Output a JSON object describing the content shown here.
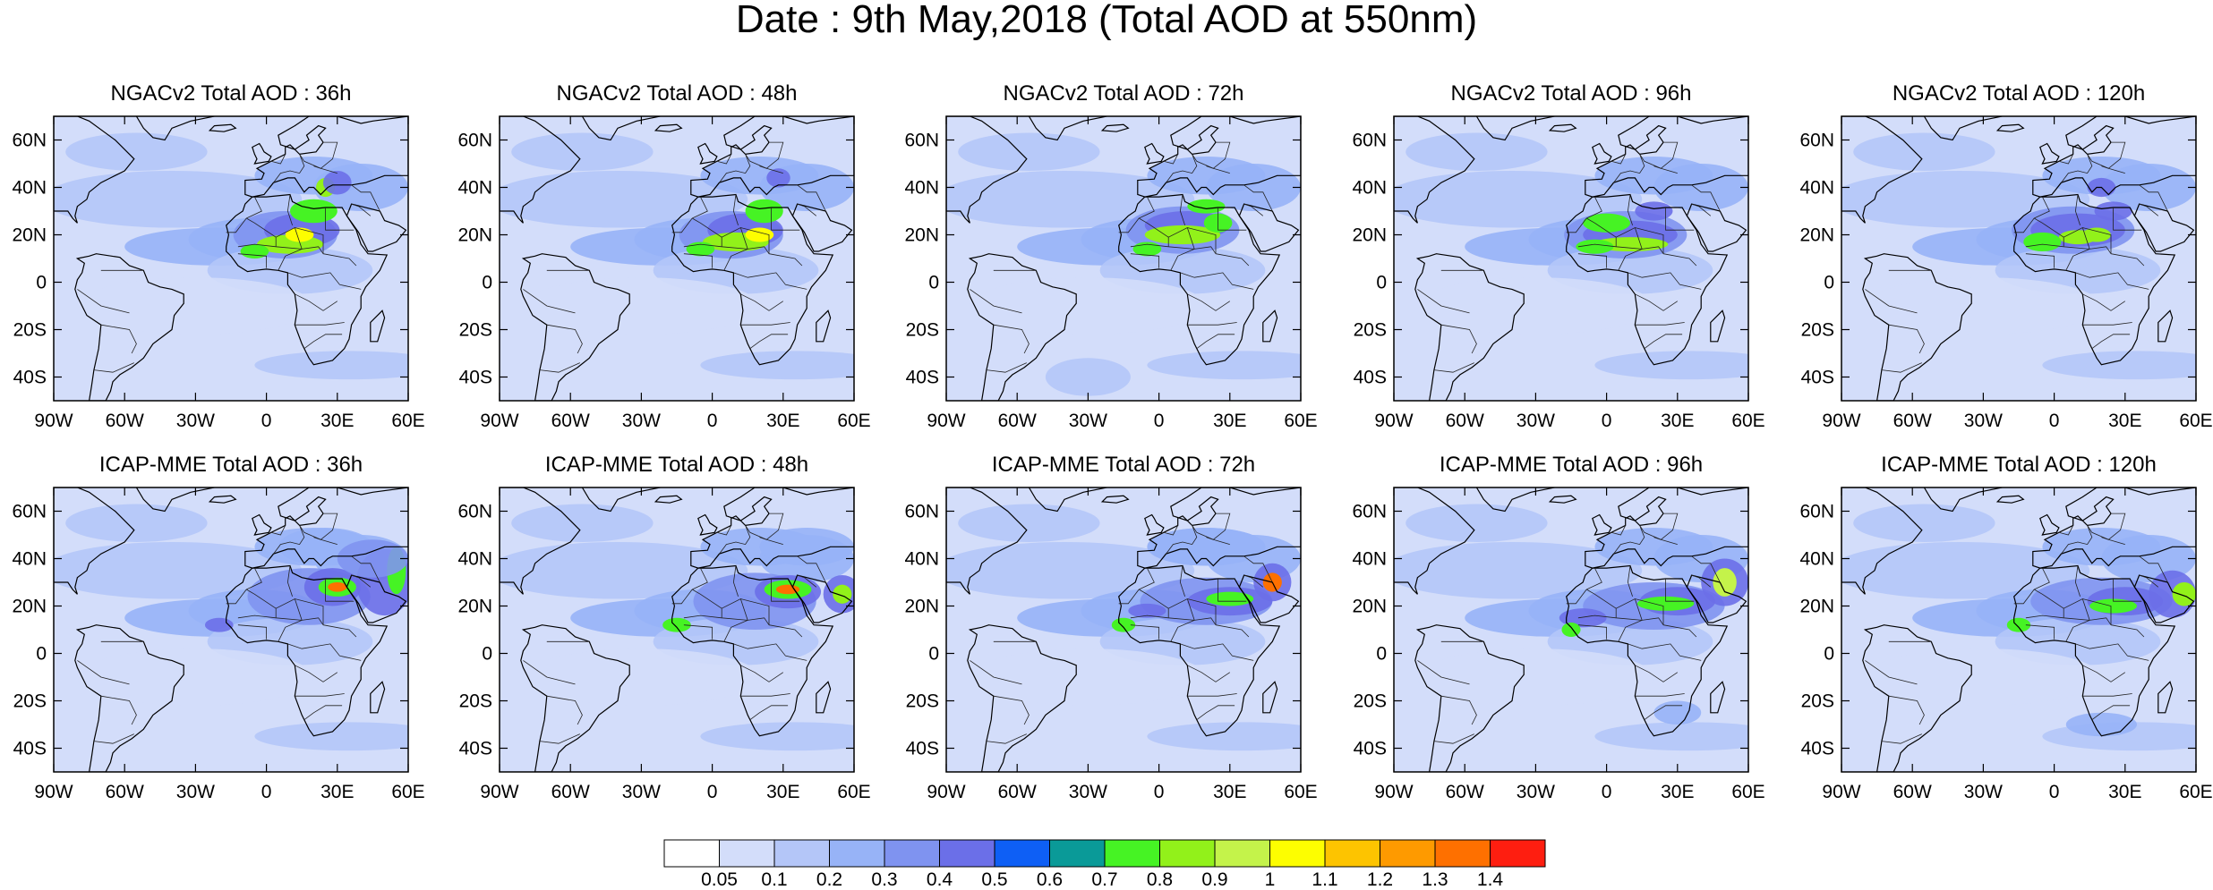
{
  "title": "Date : 9th May,2018 (Total AOD at 550nm)",
  "rows": [
    {
      "model": "NGACv2",
      "panels": [
        {
          "title": "NGACv2 Total AOD : 36h",
          "lead": "36h"
        },
        {
          "title": "NGACv2 Total AOD : 48h",
          "lead": "48h"
        },
        {
          "title": "NGACv2 Total AOD : 72h",
          "lead": "72h"
        },
        {
          "title": "NGACv2 Total AOD : 96h",
          "lead": "96h"
        },
        {
          "title": "NGACv2 Total AOD : 120h",
          "lead": "120h"
        }
      ]
    },
    {
      "model": "ICAP-MME",
      "panels": [
        {
          "title": "ICAP-MME Total AOD : 36h",
          "lead": "36h"
        },
        {
          "title": "ICAP-MME Total AOD : 48h",
          "lead": "48h"
        },
        {
          "title": "ICAP-MME Total AOD : 72h",
          "lead": "72h"
        },
        {
          "title": "ICAP-MME Total AOD : 96h",
          "lead": "96h"
        },
        {
          "title": "ICAP-MME Total AOD : 120h",
          "lead": "120h"
        }
      ]
    }
  ],
  "map_extent": {
    "lon": [
      -90,
      60
    ],
    "lat": [
      -50,
      70
    ]
  },
  "lat_ticks": [
    {
      "value": 60,
      "label": "60N"
    },
    {
      "value": 40,
      "label": "40N"
    },
    {
      "value": 20,
      "label": "20N"
    },
    {
      "value": 0,
      "label": "0"
    },
    {
      "value": -20,
      "label": "20S"
    },
    {
      "value": -40,
      "label": "40S"
    }
  ],
  "lon_ticks": [
    {
      "value": -90,
      "label": "90W"
    },
    {
      "value": -60,
      "label": "60W"
    },
    {
      "value": -30,
      "label": "30W"
    },
    {
      "value": 0,
      "label": "0"
    },
    {
      "value": 30,
      "label": "30E"
    },
    {
      "value": 60,
      "label": "60E"
    }
  ],
  "colorbar": {
    "levels": [
      "0.05",
      "0.1",
      "0.2",
      "0.3",
      "0.4",
      "0.5",
      "0.6",
      "0.7",
      "0.8",
      "0.9",
      "1",
      "1.1",
      "1.2",
      "1.3",
      "1.4"
    ],
    "colors": [
      "#ffffff",
      "#d3ddfa",
      "#b4c6f8",
      "#97b3f7",
      "#7f93f0",
      "#6b6fe8",
      "#0e5ff5",
      "#0a9a98",
      "#46f324",
      "#92f11a",
      "#c4f34a",
      "#fdfe00",
      "#fdc400",
      "#fe9a00",
      "#fe7000",
      "#fe1e10"
    ]
  }
}
